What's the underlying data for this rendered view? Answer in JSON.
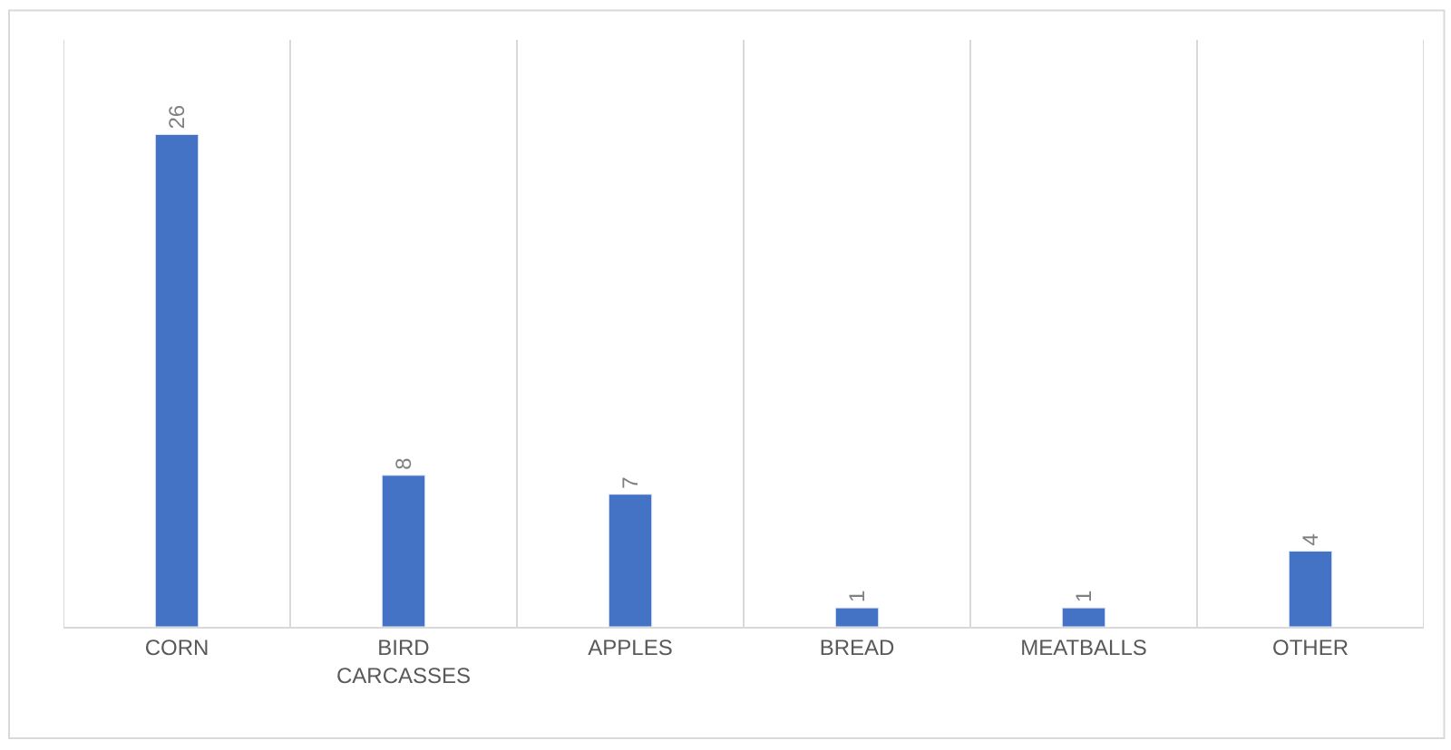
{
  "chart_data": {
    "type": "bar",
    "categories": [
      "CORN",
      "BIRD CARCASSES",
      "APPLES",
      "BREAD",
      "MEATBALLS",
      "OTHER"
    ],
    "values": [
      26,
      8,
      7,
      1,
      1,
      4
    ],
    "color": "#4472c4",
    "ylim": [
      0,
      31
    ],
    "data_labels": true,
    "grid": "x",
    "tick_labels": "x"
  }
}
